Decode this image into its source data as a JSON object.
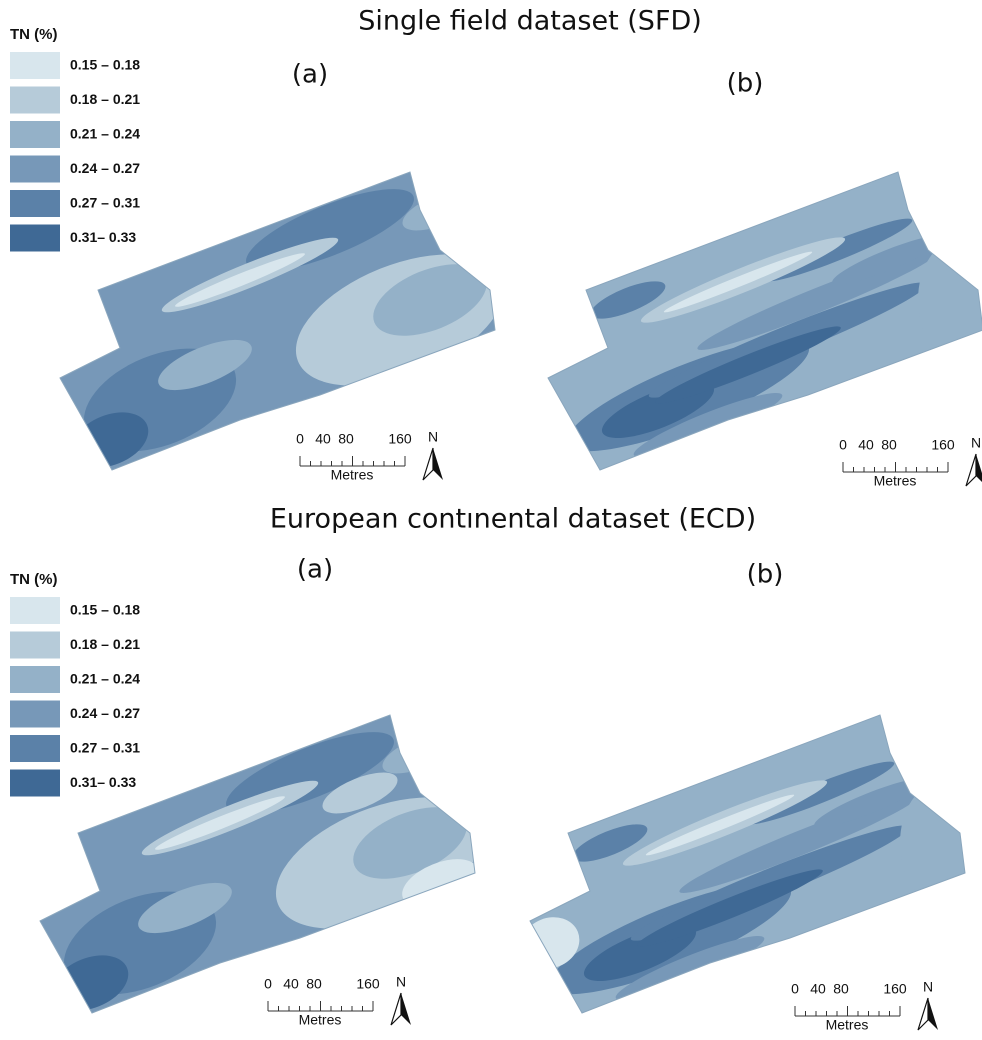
{
  "sections": [
    {
      "title": "Single field dataset (SFD)",
      "legend": {
        "title": "TN (%)",
        "items": [
          {
            "label": "0.15 – 0.18",
            "color": "#d8e6ed"
          },
          {
            "label": "0.18 – 0.21",
            "color": "#b6cbd9"
          },
          {
            "label": "0.21 – 0.24",
            "color": "#94b1c8"
          },
          {
            "label": "0.24 – 0.27",
            "color": "#7798b8"
          },
          {
            "label": "0.27 – 0.31",
            "color": "#5b81a8"
          },
          {
            "label": "0.31– 0.33",
            "color": "#3f6995"
          }
        ]
      },
      "panels": [
        {
          "label": "(a)",
          "scale": {
            "ticks": [
              "0",
              "40",
              "80",
              "160"
            ],
            "unit": "Metres",
            "north": "N"
          }
        },
        {
          "label": "(b)",
          "scale": {
            "ticks": [
              "0",
              "40",
              "80",
              "160"
            ],
            "unit": "Metres",
            "north": "N"
          }
        }
      ]
    },
    {
      "title": "European contınental dataset (ECD)",
      "legend": {
        "title": "TN (%)",
        "items": [
          {
            "label": "0.15 – 0.18",
            "color": "#d8e6ed"
          },
          {
            "label": "0.18 – 0.21",
            "color": "#b6cbd9"
          },
          {
            "label": "0.21 – 0.24",
            "color": "#94b1c8"
          },
          {
            "label": "0.24 – 0.27",
            "color": "#7798b8"
          },
          {
            "label": "0.27 – 0.31",
            "color": "#5b81a8"
          },
          {
            "label": "0.31– 0.33",
            "color": "#3f6995"
          }
        ]
      },
      "panels": [
        {
          "label": "(a)",
          "scale": {
            "ticks": [
              "0",
              "40",
              "80",
              "160"
            ],
            "unit": "Metres",
            "north": "N"
          }
        },
        {
          "label": "(b)",
          "scale": {
            "ticks": [
              "0",
              "40",
              "80",
              "160"
            ],
            "unit": "Metres",
            "north": "N"
          }
        }
      ]
    }
  ]
}
